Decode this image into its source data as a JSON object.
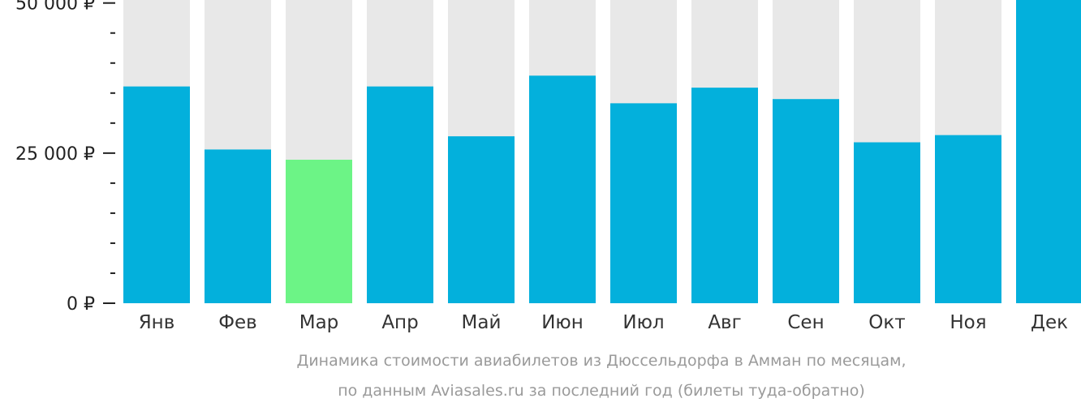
{
  "chart_data": {
    "type": "bar",
    "categories": [
      "Янв",
      "Фев",
      "Мар",
      "Апр",
      "Май",
      "Июн",
      "Июл",
      "Авг",
      "Сен",
      "Окт",
      "Ноя",
      "Дек"
    ],
    "values": [
      36100,
      25600,
      23900,
      36100,
      27800,
      37900,
      33300,
      35900,
      34000,
      26800,
      28000,
      50500
    ],
    "highlight_index": 2,
    "ylim": [
      0,
      50500
    ],
    "y_ticks": [
      {
        "value": 0,
        "label": "0 ₽"
      },
      {
        "value": 25000,
        "label": "25 000 ₽"
      },
      {
        "value": 50000,
        "label": "50 000 ₽"
      }
    ],
    "minor_tick_step": 5000,
    "caption_lines": [
      "Динамика стоимости авиабилетов из Дюссельдорфа в Амман по месяцам,",
      "по данным Aviasales.ru за последний год (билеты туда-обратно)"
    ],
    "colors": {
      "bar": "#03b0dc",
      "highlight": "#6cf486",
      "background_bar": "#e8e8e8",
      "axis": "#222222"
    }
  }
}
